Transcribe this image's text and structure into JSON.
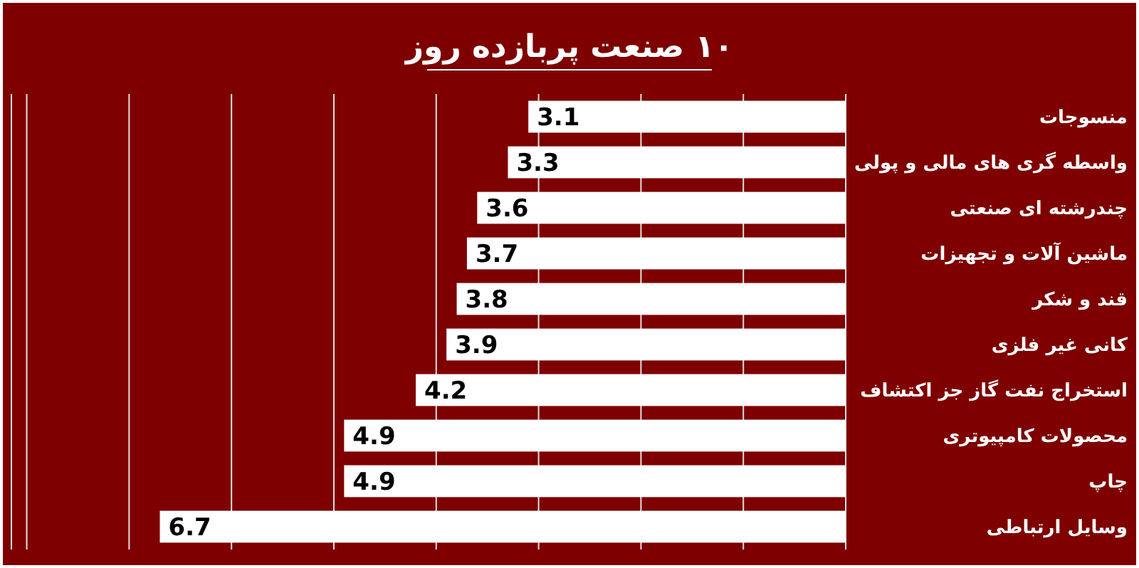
{
  "chart_data": {
    "type": "bar",
    "orientation": "horizontal",
    "title": "۱۰ صنعت پربازده روز",
    "categories": [
      "منسوجات",
      "واسطه گری های مالی و پولی",
      "چندرشته ای صنعتی",
      "ماشین آلات و تجهیزات",
      "قند و شکر",
      "کانی غیر فلزی",
      "استخراج نفت گاز جز اکتشاف",
      "محصولات کامپیوتری",
      "چاپ",
      "وسایل ارتباطی"
    ],
    "values": [
      3.1,
      3.3,
      3.6,
      3.7,
      3.8,
      3.9,
      4.2,
      4.9,
      4.9,
      6.7
    ],
    "color": "#ffffff",
    "data_labels": true,
    "xlim": [
      8.15,
      0
    ],
    "xticks": [
      {
        "value": 1,
        "label": null
      },
      {
        "value": 2,
        "label": null
      },
      {
        "value": 3,
        "label": null
      },
      {
        "value": 4,
        "label": null
      },
      {
        "value": 5,
        "label": null
      },
      {
        "value": 6,
        "label": null
      },
      {
        "value": 7,
        "label": null
      },
      {
        "value": 8,
        "label": null
      }
    ],
    "grid": "x"
  }
}
